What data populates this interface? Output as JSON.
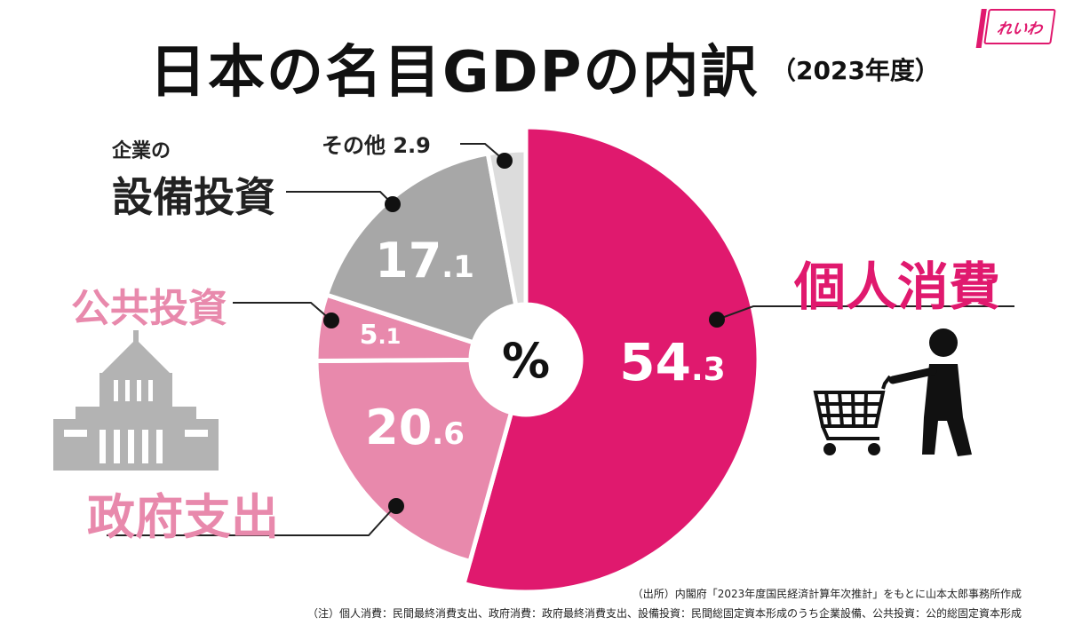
{
  "title": "日本の名目GDPの内訳",
  "subtitle": "（2023年度）",
  "logo_text": "れいわ",
  "center_label": "%",
  "colors": {
    "consumption": "#e0196e",
    "government": "#e889ac",
    "public": "#e889ac",
    "business": "#a7a7a7",
    "other": "#dcdcdc",
    "label_pink": "#e889ac",
    "label_magenta": "#e0196e",
    "label_dark": "#222222",
    "icon_gray": "#b3b3b3"
  },
  "icons": [
    "national-diet-building-icon",
    "shopping-cart-person-icon"
  ],
  "chart_data": {
    "type": "pie",
    "title": "日本の名目GDPの内訳",
    "unit": "%",
    "slices": [
      {
        "key": "consumption",
        "label": "個人消費",
        "value": 54.3,
        "int": "54",
        "dec": ".3"
      },
      {
        "key": "government",
        "label": "政府支出",
        "value": 20.6,
        "int": "20",
        "dec": ".6"
      },
      {
        "key": "public",
        "label": "公共投資",
        "value": 5.1,
        "int": "5",
        "dec": ".1"
      },
      {
        "key": "business",
        "label_small": "企業の",
        "label": "設備投資",
        "value": 17.1,
        "int": "17",
        "dec": ".1"
      },
      {
        "key": "other",
        "label": "その他",
        "value": 2.9,
        "int": "",
        "dec": ""
      }
    ]
  },
  "labels": {
    "other_name": "その他",
    "other_value": "2.9"
  },
  "footer": {
    "source": "（出所）内閣府「2023年度国民経済計算年次推計」をもとに山本太郎事務所作成",
    "note": "（注）個人消費：民間最終消費支出、政府消費：政府最終消費支出、設備投資：民間総固定資本形成のうち企業設備、公共投資：公的総固定資本形成"
  }
}
